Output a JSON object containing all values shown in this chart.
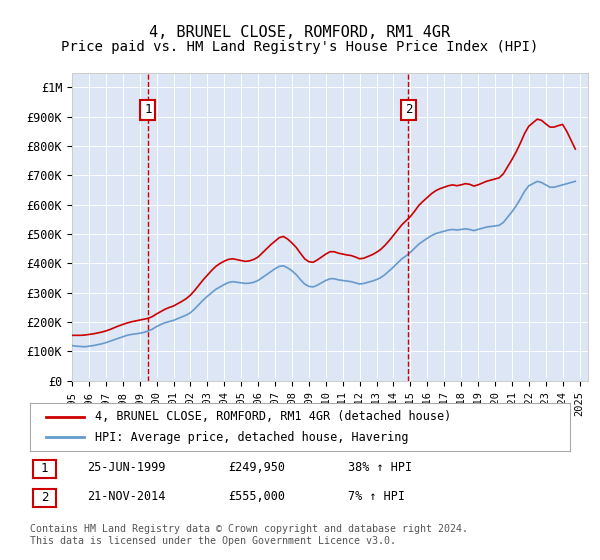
{
  "title": "4, BRUNEL CLOSE, ROMFORD, RM1 4GR",
  "subtitle": "Price paid vs. HM Land Registry's House Price Index (HPI)",
  "title_fontsize": 11,
  "subtitle_fontsize": 10,
  "background_color": "#ffffff",
  "plot_bg_color": "#dce6f5",
  "xlabel": "",
  "ylabel": "",
  "ylim": [
    0,
    1050000
  ],
  "xlim_start": 1995.0,
  "xlim_end": 2025.5,
  "yticks": [
    0,
    100000,
    200000,
    300000,
    400000,
    500000,
    600000,
    700000,
    800000,
    900000,
    1000000
  ],
  "ytick_labels": [
    "£0",
    "£100K",
    "£200K",
    "£300K",
    "£400K",
    "£500K",
    "£600K",
    "£700K",
    "£800K",
    "£900K",
    "£1M"
  ],
  "xticks": [
    1995,
    1996,
    1997,
    1998,
    1999,
    2000,
    2001,
    2002,
    2003,
    2004,
    2005,
    2006,
    2007,
    2008,
    2009,
    2010,
    2011,
    2012,
    2013,
    2014,
    2015,
    2016,
    2017,
    2018,
    2019,
    2020,
    2021,
    2022,
    2023,
    2024,
    2025
  ],
  "red_line_color": "#cc0000",
  "blue_line_color": "#6699cc",
  "vline_color": "#cc0000",
  "vline_style": "--",
  "sale1_x": 1999.48,
  "sale1_y": 249950,
  "sale2_x": 2014.89,
  "sale2_y": 555000,
  "legend_label_red": "4, BRUNEL CLOSE, ROMFORD, RM1 4GR (detached house)",
  "legend_label_blue": "HPI: Average price, detached house, Havering",
  "annotation1_label": "1",
  "annotation1_date": "25-JUN-1999",
  "annotation1_price": "£249,950",
  "annotation1_hpi": "38% ↑ HPI",
  "annotation2_label": "2",
  "annotation2_date": "21-NOV-2014",
  "annotation2_price": "£555,000",
  "annotation2_hpi": "7% ↑ HPI",
  "footer_text": "Contains HM Land Registry data © Crown copyright and database right 2024.\nThis data is licensed under the Open Government Licence v3.0.",
  "hpi_data_x": [
    1995.0,
    1995.25,
    1995.5,
    1995.75,
    1996.0,
    1996.25,
    1996.5,
    1996.75,
    1997.0,
    1997.25,
    1997.5,
    1997.75,
    1998.0,
    1998.25,
    1998.5,
    1998.75,
    1999.0,
    1999.25,
    1999.5,
    1999.75,
    2000.0,
    2000.25,
    2000.5,
    2000.75,
    2001.0,
    2001.25,
    2001.5,
    2001.75,
    2002.0,
    2002.25,
    2002.5,
    2002.75,
    2003.0,
    2003.25,
    2003.5,
    2003.75,
    2004.0,
    2004.25,
    2004.5,
    2004.75,
    2005.0,
    2005.25,
    2005.5,
    2005.75,
    2006.0,
    2006.25,
    2006.5,
    2006.75,
    2007.0,
    2007.25,
    2007.5,
    2007.75,
    2008.0,
    2008.25,
    2008.5,
    2008.75,
    2009.0,
    2009.25,
    2009.5,
    2009.75,
    2010.0,
    2010.25,
    2010.5,
    2010.75,
    2011.0,
    2011.25,
    2011.5,
    2011.75,
    2012.0,
    2012.25,
    2012.5,
    2012.75,
    2013.0,
    2013.25,
    2013.5,
    2013.75,
    2014.0,
    2014.25,
    2014.5,
    2014.75,
    2015.0,
    2015.25,
    2015.5,
    2015.75,
    2016.0,
    2016.25,
    2016.5,
    2016.75,
    2017.0,
    2017.25,
    2017.5,
    2017.75,
    2018.0,
    2018.25,
    2018.5,
    2018.75,
    2019.0,
    2019.25,
    2019.5,
    2019.75,
    2020.0,
    2020.25,
    2020.5,
    2020.75,
    2021.0,
    2021.25,
    2021.5,
    2021.75,
    2022.0,
    2022.25,
    2022.5,
    2022.75,
    2023.0,
    2023.25,
    2023.5,
    2023.75,
    2024.0,
    2024.25,
    2024.5,
    2024.75
  ],
  "hpi_data_y": [
    120000,
    118000,
    117000,
    116000,
    118000,
    120000,
    123000,
    126000,
    130000,
    135000,
    140000,
    145000,
    150000,
    155000,
    158000,
    160000,
    162000,
    165000,
    170000,
    176000,
    185000,
    192000,
    198000,
    202000,
    206000,
    212000,
    218000,
    224000,
    232000,
    245000,
    260000,
    275000,
    288000,
    300000,
    312000,
    320000,
    328000,
    335000,
    338000,
    336000,
    334000,
    332000,
    333000,
    336000,
    342000,
    352000,
    362000,
    372000,
    382000,
    390000,
    392000,
    385000,
    375000,
    362000,
    345000,
    330000,
    322000,
    320000,
    326000,
    334000,
    342000,
    348000,
    348000,
    344000,
    342000,
    340000,
    338000,
    334000,
    330000,
    332000,
    336000,
    340000,
    345000,
    352000,
    362000,
    375000,
    388000,
    402000,
    416000,
    426000,
    438000,
    452000,
    466000,
    476000,
    486000,
    495000,
    502000,
    506000,
    510000,
    514000,
    516000,
    514000,
    516000,
    518000,
    516000,
    512000,
    516000,
    520000,
    524000,
    526000,
    528000,
    530000,
    540000,
    558000,
    576000,
    596000,
    620000,
    646000,
    665000,
    672000,
    680000,
    676000,
    668000,
    660000,
    660000,
    664000,
    668000,
    672000,
    676000,
    680000
  ],
  "red_data_x": [
    1995.0,
    1995.25,
    1995.5,
    1995.75,
    1996.0,
    1996.25,
    1996.5,
    1996.75,
    1997.0,
    1997.25,
    1997.5,
    1997.75,
    1998.0,
    1998.25,
    1998.5,
    1998.75,
    1999.0,
    1999.25,
    1999.5,
    1999.75,
    2000.0,
    2000.25,
    2000.5,
    2000.75,
    2001.0,
    2001.25,
    2001.5,
    2001.75,
    2002.0,
    2002.25,
    2002.5,
    2002.75,
    2003.0,
    2003.25,
    2003.5,
    2003.75,
    2004.0,
    2004.25,
    2004.5,
    2004.75,
    2005.0,
    2005.25,
    2005.5,
    2005.75,
    2006.0,
    2006.25,
    2006.5,
    2006.75,
    2007.0,
    2007.25,
    2007.5,
    2007.75,
    2008.0,
    2008.25,
    2008.5,
    2008.75,
    2009.0,
    2009.25,
    2009.5,
    2009.75,
    2010.0,
    2010.25,
    2010.5,
    2010.75,
    2011.0,
    2011.25,
    2011.5,
    2011.75,
    2012.0,
    2012.25,
    2012.5,
    2012.75,
    2013.0,
    2013.25,
    2013.5,
    2013.75,
    2014.0,
    2014.25,
    2014.5,
    2014.75,
    2015.0,
    2015.25,
    2015.5,
    2015.75,
    2016.0,
    2016.25,
    2016.5,
    2016.75,
    2017.0,
    2017.25,
    2017.5,
    2017.75,
    2018.0,
    2018.25,
    2018.5,
    2018.75,
    2019.0,
    2019.25,
    2019.5,
    2019.75,
    2020.0,
    2020.25,
    2020.5,
    2020.75,
    2021.0,
    2021.25,
    2021.5,
    2021.75,
    2022.0,
    2022.25,
    2022.5,
    2022.75,
    2023.0,
    2023.25,
    2023.5,
    2023.75,
    2024.0,
    2024.25,
    2024.5,
    2024.75
  ],
  "red_data_y": [
    155000,
    155000,
    155000,
    156000,
    158000,
    160000,
    163000,
    166000,
    170000,
    175000,
    181000,
    187000,
    192000,
    197000,
    201000,
    204000,
    207000,
    210000,
    213000,
    219000,
    228000,
    236000,
    244000,
    250000,
    255000,
    263000,
    271000,
    280000,
    292000,
    308000,
    326000,
    344000,
    360000,
    376000,
    390000,
    400000,
    408000,
    414000,
    416000,
    413000,
    410000,
    407000,
    409000,
    414000,
    422000,
    436000,
    450000,
    464000,
    476000,
    488000,
    492000,
    483000,
    470000,
    455000,
    435000,
    416000,
    406000,
    404000,
    412000,
    422000,
    432000,
    440000,
    440000,
    435000,
    432000,
    429000,
    427000,
    422000,
    416000,
    418000,
    424000,
    430000,
    438000,
    448000,
    462000,
    478000,
    496000,
    514000,
    532000,
    546000,
    560000,
    578000,
    598000,
    612000,
    625000,
    638000,
    648000,
    655000,
    660000,
    665000,
    668000,
    665000,
    668000,
    672000,
    670000,
    664000,
    668000,
    674000,
    680000,
    684000,
    688000,
    692000,
    706000,
    730000,
    754000,
    780000,
    810000,
    843000,
    868000,
    880000,
    892000,
    888000,
    876000,
    865000,
    865000,
    870000,
    874000,
    850000,
    820000,
    790000
  ]
}
